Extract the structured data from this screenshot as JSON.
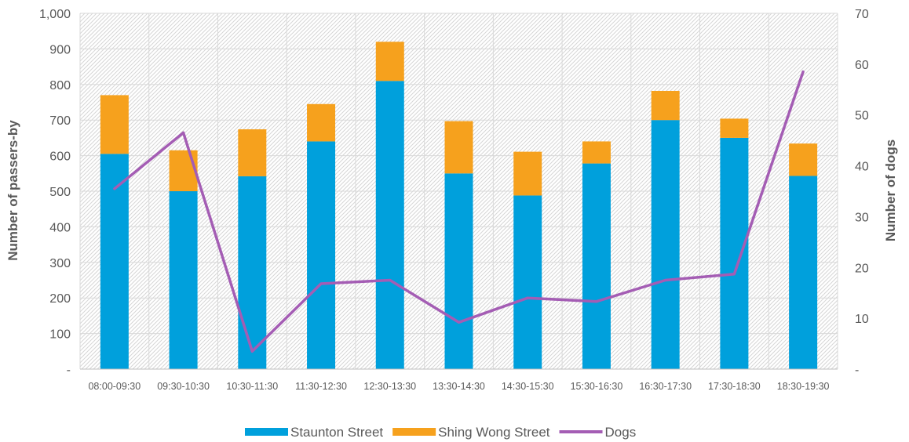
{
  "chart_data": {
    "type": "bar",
    "stacked": true,
    "categories": [
      "08:00-09:30",
      "09:30-10:30",
      "10:30-11:30",
      "11:30-12:30",
      "12:30-13:30",
      "13:30-14:30",
      "14:30-15:30",
      "15:30-16:30",
      "16:30-17:30",
      "17:30-18:30",
      "18:30-19:30"
    ],
    "series": [
      {
        "name": "Staunton Street",
        "type": "bar",
        "axis": "left",
        "color": "#00A0DC",
        "values": [
          605,
          500,
          542,
          640,
          810,
          550,
          488,
          578,
          700,
          650,
          543
        ]
      },
      {
        "name": "Shing Wong Street",
        "type": "bar",
        "axis": "left",
        "color": "#F6A11D",
        "values": [
          165,
          115,
          132,
          105,
          110,
          147,
          123,
          62,
          82,
          54,
          91
        ]
      },
      {
        "name": "Dogs",
        "type": "line",
        "axis": "right",
        "color": "#A45DB4",
        "values": [
          35.5,
          46.5,
          3.5,
          16.8,
          17.5,
          9.2,
          14,
          13.3,
          17.5,
          18.7,
          58.5
        ]
      }
    ],
    "ylabel": "Number of passers-by",
    "y2label": "Number of dogs",
    "ylim": [
      0,
      1000
    ],
    "y2lim": [
      0,
      70
    ],
    "yticks": [
      "-",
      "100",
      "200",
      "300",
      "400",
      "500",
      "600",
      "700",
      "800",
      "900",
      "1,000"
    ],
    "y2ticks": [
      "-",
      "10",
      "20",
      "30",
      "40",
      "50",
      "60",
      "70"
    ],
    "grid": true,
    "legend_position": "bottom",
    "background_pattern": "diagonal-hatch"
  }
}
